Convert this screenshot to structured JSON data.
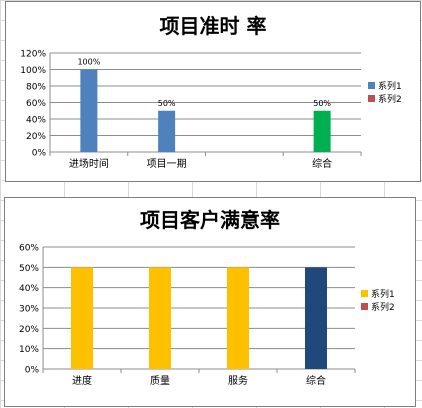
{
  "chart_data": [
    {
      "type": "bar",
      "title": "项目准时 率",
      "categories": [
        "进场时间",
        "项目一期",
        "",
        "综合"
      ],
      "series": [
        {
          "name": "系列1",
          "values": [
            1.0,
            0.5,
            null,
            0.5
          ],
          "color": "#4f81bd"
        },
        {
          "name": "系列2",
          "values": [
            null,
            null,
            null,
            null
          ],
          "color": "#c0504d"
        }
      ],
      "point_colors": [
        "#4f81bd",
        "#4f81bd",
        null,
        "#00b050"
      ],
      "data_labels": [
        "100%",
        "50%",
        "",
        "50%"
      ],
      "y_ticks": [
        "0%",
        "20%",
        "40%",
        "60%",
        "80%",
        "100%",
        "120%"
      ],
      "ylim": [
        0,
        1.2
      ],
      "grid": true,
      "legend_position": "right"
    },
    {
      "type": "bar",
      "title": "项目客户满意率",
      "categories": [
        "进度",
        "质量",
        "服务",
        "综合"
      ],
      "series": [
        {
          "name": "系列1",
          "values": [
            0.5,
            0.5,
            0.5,
            0.5
          ],
          "color": "#ffc000"
        },
        {
          "name": "系列2",
          "values": [
            null,
            null,
            null,
            null
          ],
          "color": "#c0504d"
        }
      ],
      "point_colors": [
        "#ffc000",
        "#ffc000",
        "#ffc000",
        "#1f497d"
      ],
      "data_labels": [
        "",
        "",
        "",
        ""
      ],
      "y_ticks": [
        "0%",
        "10%",
        "20%",
        "30%",
        "40%",
        "50%",
        "60%"
      ],
      "ylim": [
        0,
        0.6
      ],
      "grid": true,
      "legend_position": "right"
    }
  ]
}
